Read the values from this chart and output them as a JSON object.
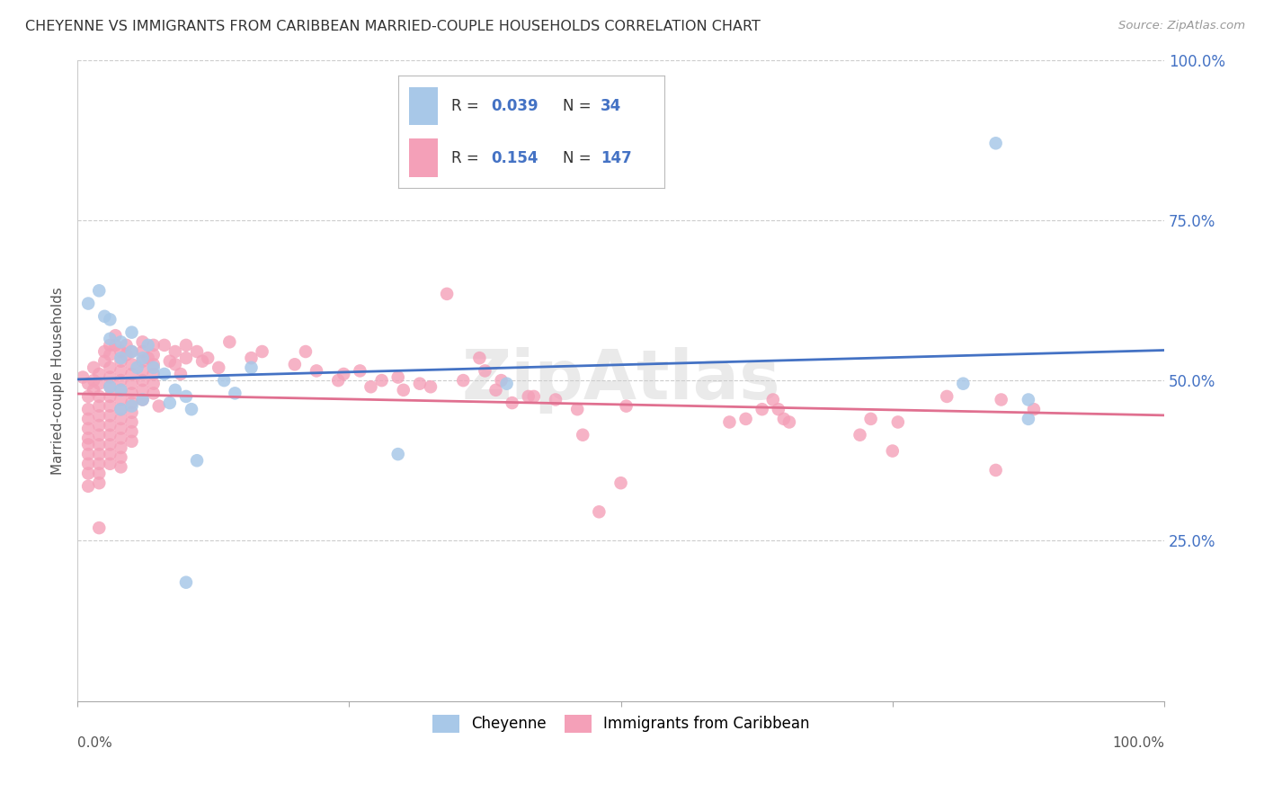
{
  "title": "CHEYENNE VS IMMIGRANTS FROM CARIBBEAN MARRIED-COUPLE HOUSEHOLDS CORRELATION CHART",
  "source": "Source: ZipAtlas.com",
  "ylabel": "Married-couple Households",
  "xlim": [
    0.0,
    1.0
  ],
  "ylim": [
    0.0,
    1.0
  ],
  "ytick_positions": [
    0.0,
    0.25,
    0.5,
    0.75,
    1.0
  ],
  "ytick_labels": [
    "",
    "25.0%",
    "50.0%",
    "75.0%",
    "100.0%"
  ],
  "cheyenne_color": "#a8c8e8",
  "caribbean_color": "#f4a0b8",
  "trend_blue": "#4472c4",
  "trend_pink": "#e07090",
  "background_color": "#ffffff",
  "grid_color": "#cccccc",
  "title_color": "#333333",
  "source_color": "#999999",
  "ylabel_color": "#555555",
  "tick_label_color": "#4472c4",
  "cheyenne_points": [
    [
      0.01,
      0.62
    ],
    [
      0.02,
      0.64
    ],
    [
      0.025,
      0.6
    ],
    [
      0.03,
      0.595
    ],
    [
      0.03,
      0.565
    ],
    [
      0.04,
      0.56
    ],
    [
      0.04,
      0.535
    ],
    [
      0.05,
      0.575
    ],
    [
      0.05,
      0.545
    ],
    [
      0.055,
      0.52
    ],
    [
      0.06,
      0.535
    ],
    [
      0.065,
      0.555
    ],
    [
      0.07,
      0.52
    ],
    [
      0.08,
      0.51
    ],
    [
      0.085,
      0.465
    ],
    [
      0.09,
      0.485
    ],
    [
      0.1,
      0.475
    ],
    [
      0.105,
      0.455
    ],
    [
      0.11,
      0.375
    ],
    [
      0.135,
      0.5
    ],
    [
      0.145,
      0.48
    ],
    [
      0.16,
      0.52
    ],
    [
      0.03,
      0.49
    ],
    [
      0.04,
      0.485
    ],
    [
      0.04,
      0.455
    ],
    [
      0.05,
      0.46
    ],
    [
      0.06,
      0.47
    ],
    [
      0.295,
      0.385
    ],
    [
      0.395,
      0.495
    ],
    [
      0.815,
      0.495
    ],
    [
      0.845,
      0.87
    ],
    [
      0.875,
      0.47
    ],
    [
      0.875,
      0.44
    ],
    [
      0.1,
      0.185
    ]
  ],
  "caribbean_points": [
    [
      0.005,
      0.505
    ],
    [
      0.01,
      0.495
    ],
    [
      0.01,
      0.475
    ],
    [
      0.01,
      0.455
    ],
    [
      0.01,
      0.44
    ],
    [
      0.01,
      0.425
    ],
    [
      0.01,
      0.41
    ],
    [
      0.01,
      0.4
    ],
    [
      0.01,
      0.385
    ],
    [
      0.01,
      0.37
    ],
    [
      0.01,
      0.355
    ],
    [
      0.01,
      0.335
    ],
    [
      0.015,
      0.52
    ],
    [
      0.015,
      0.5
    ],
    [
      0.015,
      0.485
    ],
    [
      0.02,
      0.51
    ],
    [
      0.02,
      0.495
    ],
    [
      0.02,
      0.475
    ],
    [
      0.02,
      0.46
    ],
    [
      0.02,
      0.445
    ],
    [
      0.02,
      0.43
    ],
    [
      0.02,
      0.415
    ],
    [
      0.02,
      0.4
    ],
    [
      0.02,
      0.385
    ],
    [
      0.02,
      0.37
    ],
    [
      0.02,
      0.355
    ],
    [
      0.02,
      0.34
    ],
    [
      0.02,
      0.27
    ],
    [
      0.025,
      0.545
    ],
    [
      0.025,
      0.53
    ],
    [
      0.03,
      0.555
    ],
    [
      0.03,
      0.54
    ],
    [
      0.03,
      0.52
    ],
    [
      0.03,
      0.505
    ],
    [
      0.03,
      0.49
    ],
    [
      0.03,
      0.475
    ],
    [
      0.03,
      0.46
    ],
    [
      0.03,
      0.445
    ],
    [
      0.03,
      0.43
    ],
    [
      0.03,
      0.415
    ],
    [
      0.03,
      0.4
    ],
    [
      0.03,
      0.385
    ],
    [
      0.03,
      0.37
    ],
    [
      0.035,
      0.57
    ],
    [
      0.035,
      0.555
    ],
    [
      0.04,
      0.545
    ],
    [
      0.04,
      0.53
    ],
    [
      0.04,
      0.515
    ],
    [
      0.04,
      0.5
    ],
    [
      0.04,
      0.485
    ],
    [
      0.04,
      0.47
    ],
    [
      0.04,
      0.455
    ],
    [
      0.04,
      0.44
    ],
    [
      0.04,
      0.425
    ],
    [
      0.04,
      0.41
    ],
    [
      0.04,
      0.395
    ],
    [
      0.04,
      0.38
    ],
    [
      0.04,
      0.365
    ],
    [
      0.045,
      0.555
    ],
    [
      0.045,
      0.54
    ],
    [
      0.05,
      0.545
    ],
    [
      0.05,
      0.525
    ],
    [
      0.05,
      0.51
    ],
    [
      0.05,
      0.495
    ],
    [
      0.05,
      0.48
    ],
    [
      0.05,
      0.465
    ],
    [
      0.05,
      0.45
    ],
    [
      0.05,
      0.435
    ],
    [
      0.05,
      0.42
    ],
    [
      0.05,
      0.405
    ],
    [
      0.06,
      0.56
    ],
    [
      0.06,
      0.545
    ],
    [
      0.06,
      0.53
    ],
    [
      0.06,
      0.515
    ],
    [
      0.06,
      0.5
    ],
    [
      0.06,
      0.485
    ],
    [
      0.06,
      0.47
    ],
    [
      0.065,
      0.535
    ],
    [
      0.07,
      0.555
    ],
    [
      0.07,
      0.54
    ],
    [
      0.07,
      0.525
    ],
    [
      0.07,
      0.51
    ],
    [
      0.07,
      0.495
    ],
    [
      0.07,
      0.48
    ],
    [
      0.075,
      0.46
    ],
    [
      0.08,
      0.555
    ],
    [
      0.085,
      0.53
    ],
    [
      0.09,
      0.545
    ],
    [
      0.09,
      0.525
    ],
    [
      0.095,
      0.51
    ],
    [
      0.1,
      0.555
    ],
    [
      0.1,
      0.535
    ],
    [
      0.11,
      0.545
    ],
    [
      0.115,
      0.53
    ],
    [
      0.12,
      0.535
    ],
    [
      0.13,
      0.52
    ],
    [
      0.14,
      0.56
    ],
    [
      0.16,
      0.535
    ],
    [
      0.17,
      0.545
    ],
    [
      0.2,
      0.525
    ],
    [
      0.21,
      0.545
    ],
    [
      0.22,
      0.515
    ],
    [
      0.24,
      0.5
    ],
    [
      0.245,
      0.51
    ],
    [
      0.26,
      0.515
    ],
    [
      0.27,
      0.49
    ],
    [
      0.28,
      0.5
    ],
    [
      0.295,
      0.505
    ],
    [
      0.3,
      0.485
    ],
    [
      0.315,
      0.495
    ],
    [
      0.325,
      0.49
    ],
    [
      0.34,
      0.635
    ],
    [
      0.355,
      0.5
    ],
    [
      0.37,
      0.535
    ],
    [
      0.375,
      0.515
    ],
    [
      0.385,
      0.485
    ],
    [
      0.39,
      0.5
    ],
    [
      0.4,
      0.465
    ],
    [
      0.415,
      0.475
    ],
    [
      0.42,
      0.475
    ],
    [
      0.44,
      0.47
    ],
    [
      0.46,
      0.455
    ],
    [
      0.465,
      0.415
    ],
    [
      0.48,
      0.295
    ],
    [
      0.5,
      0.34
    ],
    [
      0.505,
      0.46
    ],
    [
      0.6,
      0.435
    ],
    [
      0.615,
      0.44
    ],
    [
      0.63,
      0.455
    ],
    [
      0.64,
      0.47
    ],
    [
      0.645,
      0.455
    ],
    [
      0.65,
      0.44
    ],
    [
      0.655,
      0.435
    ],
    [
      0.72,
      0.415
    ],
    [
      0.73,
      0.44
    ],
    [
      0.75,
      0.39
    ],
    [
      0.755,
      0.435
    ],
    [
      0.8,
      0.475
    ],
    [
      0.845,
      0.36
    ],
    [
      0.85,
      0.47
    ],
    [
      0.88,
      0.455
    ]
  ]
}
